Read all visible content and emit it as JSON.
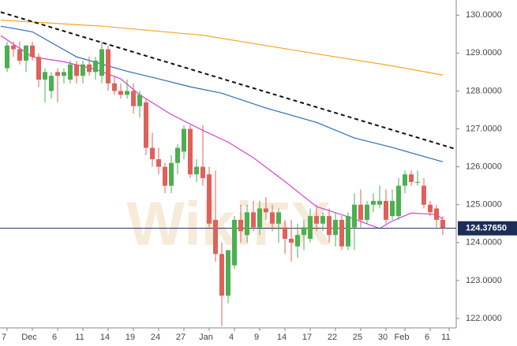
{
  "chart_data": {
    "type": "candlestick",
    "watermark": "WikiFX",
    "categories": [
      "7",
      null,
      null,
      null,
      "Dec",
      null,
      null,
      null,
      "6",
      null,
      null,
      null,
      "11",
      null,
      null,
      null,
      "14",
      null,
      null,
      null,
      "19",
      null,
      null,
      null,
      "24",
      null,
      null,
      null,
      "27",
      null,
      null,
      null,
      "Jan",
      null,
      null,
      null,
      "4",
      null,
      null,
      null,
      "9",
      null,
      null,
      null,
      "14",
      null,
      null,
      null,
      "17",
      null,
      null,
      null,
      "22",
      null,
      null,
      null,
      "25",
      null,
      null,
      null,
      "30",
      null,
      null,
      "Feb",
      null,
      null,
      null,
      "6",
      null,
      null,
      "11"
    ],
    "open": [
      128.6,
      129.2,
      129.1,
      128.8,
      129.2,
      128.9,
      128.3,
      128.0,
      128.5,
      128.4,
      128.3,
      128.7,
      128.4,
      128.7,
      128.5,
      128.4,
      129.1,
      128.2,
      128.0,
      127.9,
      128.0,
      127.6,
      127.7,
      126.5,
      126.2,
      126.0,
      125.5,
      126.1,
      126.4,
      127.0,
      125.8,
      126.0,
      125.8,
      124.6,
      123.7,
      122.6,
      123.4,
      124.6,
      124.2,
      124.8,
      124.4,
      124.9,
      124.8,
      124.5,
      124.4,
      124.1,
      123.9,
      124.2,
      124.1,
      124.7,
      124.5,
      124.7,
      124.2,
      124.6,
      123.9,
      124.4,
      125.0,
      124.6,
      125.0,
      125.0,
      125.1,
      124.7,
      124.7,
      125.5,
      125.8,
      125.6,
      125.5,
      125.0,
      124.9,
      124.6,
      null
    ],
    "high": [
      129.3,
      129.3,
      129.3,
      129.2,
      129.3,
      129.0,
      128.6,
      128.5,
      128.6,
      128.6,
      128.8,
      128.8,
      128.8,
      128.9,
      128.9,
      129.3,
      129.2,
      128.4,
      128.2,
      128.3,
      128.2,
      128.0,
      127.8,
      126.9,
      126.5,
      126.1,
      126.3,
      126.6,
      127.1,
      127.1,
      126.2,
      127.1,
      126.0,
      125.9,
      124.0,
      123.8,
      124.7,
      125.0,
      125.0,
      125.1,
      125.1,
      125.2,
      125.0,
      124.9,
      124.6,
      124.6,
      124.5,
      124.6,
      124.9,
      125.0,
      124.8,
      124.9,
      124.8,
      124.7,
      124.8,
      125.3,
      125.4,
      125.1,
      125.3,
      125.5,
      125.4,
      125.4,
      125.7,
      125.9,
      125.9,
      125.9,
      125.7,
      125.1,
      125.0,
      124.7,
      null
    ],
    "low": [
      128.5,
      128.9,
      128.7,
      128.5,
      128.8,
      128.1,
      127.7,
      127.8,
      127.7,
      128.2,
      128.2,
      128.2,
      128.2,
      128.4,
      128.3,
      128.2,
      128.0,
      127.9,
      127.8,
      127.8,
      127.4,
      127.3,
      126.3,
      126.0,
      125.8,
      125.3,
      125.3,
      125.8,
      126.2,
      125.7,
      125.6,
      125.5,
      124.4,
      123.5,
      121.8,
      122.4,
      123.3,
      124.0,
      124.0,
      124.3,
      124.2,
      124.6,
      124.3,
      124.0,
      123.7,
      123.5,
      123.6,
      123.8,
      124.0,
      124.3,
      124.3,
      124.0,
      123.9,
      123.8,
      123.8,
      123.8,
      124.4,
      124.5,
      124.8,
      124.9,
      124.5,
      124.6,
      124.6,
      125.3,
      125.5,
      125.5,
      124.9,
      124.7,
      124.4,
      124.2,
      null
    ],
    "close": [
      129.2,
      129.1,
      128.8,
      129.2,
      128.9,
      128.3,
      128.5,
      128.4,
      128.4,
      128.5,
      128.7,
      128.4,
      128.7,
      128.5,
      128.8,
      129.1,
      128.2,
      128.0,
      127.9,
      128.0,
      127.6,
      127.9,
      126.5,
      126.2,
      126.0,
      125.5,
      126.1,
      126.5,
      127.0,
      125.8,
      126.0,
      125.7,
      124.5,
      123.7,
      122.6,
      123.8,
      124.6,
      124.3,
      124.8,
      124.4,
      124.9,
      124.8,
      124.5,
      124.8,
      124.1,
      124.0,
      124.2,
      124.4,
      124.7,
      124.5,
      124.7,
      124.2,
      124.6,
      123.9,
      124.7,
      125.0,
      124.6,
      125.0,
      125.1,
      125.1,
      124.6,
      125.1,
      125.5,
      125.8,
      125.6,
      125.6,
      125.0,
      124.8,
      124.6,
      124.38,
      null
    ],
    "up_color": "#4caf50",
    "down_color": "#e0605a",
    "lines": [
      {
        "color": "#f5a623",
        "dash": false,
        "x": [
          -1,
          15,
          31,
          49,
          60,
          69
        ],
        "values": [
          129.87,
          129.71,
          129.47,
          128.98,
          128.69,
          128.42
        ]
      },
      {
        "color": "#2f6db5",
        "dash": false,
        "x": [
          -1,
          4,
          11,
          19,
          24,
          29,
          34,
          41,
          49,
          55,
          61,
          69
        ],
        "values": [
          129.71,
          129.56,
          128.9,
          128.52,
          128.32,
          128.11,
          127.94,
          127.55,
          127.17,
          126.76,
          126.51,
          126.13
        ]
      },
      {
        "color": "#d63fd6",
        "dash": false,
        "x": [
          -1,
          4,
          9,
          14,
          18,
          21,
          26,
          31,
          35,
          39,
          44,
          49,
          54,
          59,
          61,
          64,
          68,
          69
        ],
        "values": [
          129.46,
          128.9,
          128.77,
          128.57,
          128.32,
          127.9,
          127.38,
          126.96,
          126.65,
          126.24,
          125.61,
          124.95,
          124.68,
          124.37,
          124.57,
          124.78,
          124.74,
          124.62
        ]
      },
      {
        "color": "#111111",
        "dash": true,
        "x": [
          -1,
          71
        ],
        "values": [
          130.08,
          126.47
        ]
      }
    ],
    "current_price": {
      "value": 124.3765,
      "label": "124.37650"
    },
    "ylim": [
      121.75,
      130.4
    ],
    "yticks": [
      {
        "value": 122,
        "label": "122.0000"
      },
      {
        "value": 123,
        "label": "123.0000"
      },
      {
        "value": 124,
        "label": "124.0000"
      },
      {
        "value": 125,
        "label": "125.0000"
      },
      {
        "value": 126,
        "label": "126.0000"
      },
      {
        "value": 127,
        "label": "127.0000"
      },
      {
        "value": 128,
        "label": "128.0000"
      },
      {
        "value": 129,
        "label": "129.0000"
      },
      {
        "value": 130,
        "label": "130.0000"
      }
    ]
  }
}
